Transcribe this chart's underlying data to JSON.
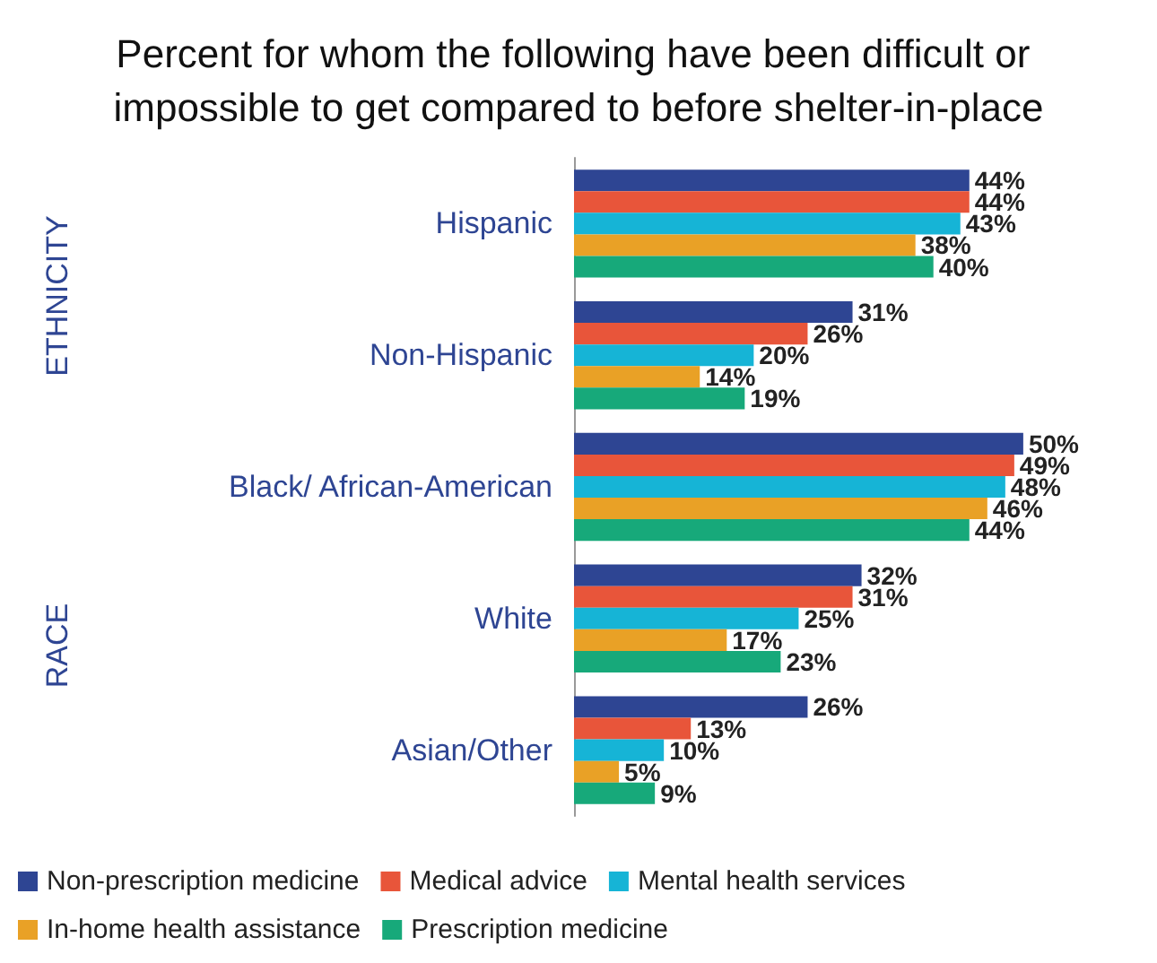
{
  "chart_data": {
    "type": "bar",
    "orientation": "horizontal",
    "title": "Percent for whom the following have been difficult or impossible to get compared to before shelter-in-place",
    "categories": [
      "Hispanic",
      "Non-Hispanic",
      "Black/ African-American",
      "White",
      "Asian/Other"
    ],
    "series": [
      {
        "name": "Non-prescription medicine",
        "color": "#2e4593",
        "values": [
          44,
          31,
          50,
          32,
          26
        ],
        "value_labels": [
          "44%",
          "31%",
          "50%",
          "32%",
          "26%"
        ]
      },
      {
        "name": "Medical advice",
        "color": "#e8553a",
        "values": [
          44,
          26,
          49,
          31,
          13
        ],
        "value_labels": [
          "44%",
          "26%",
          "49%",
          "31%",
          "13%"
        ]
      },
      {
        "name": "Mental health services",
        "color": "#16b4d6",
        "values": [
          43,
          20,
          48,
          25,
          10
        ],
        "value_labels": [
          "43%",
          "20%",
          "48%",
          "25%",
          "10%"
        ]
      },
      {
        "name": "In-home health assistance",
        "color": "#e9a126",
        "values": [
          38,
          14,
          46,
          17,
          5
        ],
        "value_labels": [
          "38%",
          "14%",
          "46%",
          "17%",
          "5%"
        ]
      },
      {
        "name": "Prescription medicine",
        "color": "#17a97a",
        "values": [
          40,
          19,
          44,
          23,
          9
        ],
        "value_labels": [
          "40%",
          "19%",
          "44%",
          "23%",
          "9%"
        ]
      }
    ],
    "annotations": [
      "ETHNICITY",
      "RACE"
    ],
    "legend": "bottom"
  }
}
